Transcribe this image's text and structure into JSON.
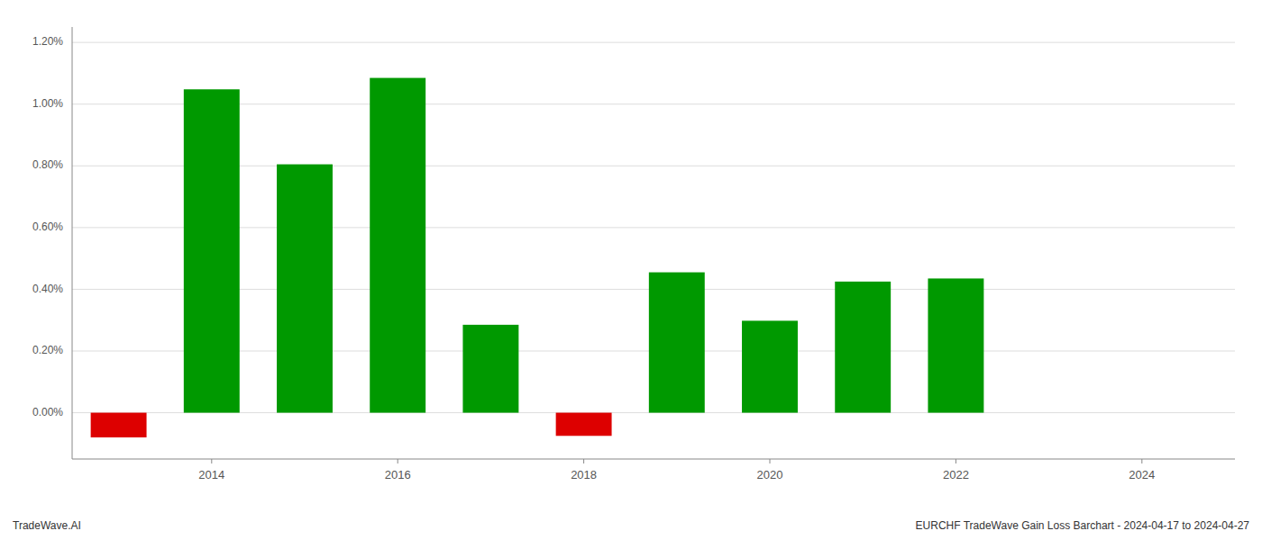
{
  "chart_data": {
    "type": "bar",
    "x": [
      2013,
      2014,
      2015,
      2016,
      2017,
      2018,
      2019,
      2020,
      2021,
      2022,
      2023
    ],
    "values": [
      -0.0008,
      0.01048,
      0.00805,
      0.01085,
      0.00285,
      -0.00075,
      0.00455,
      0.00298,
      0.00425,
      0.00435,
      0.0
    ],
    "colors": [
      "#dd0000",
      "#009900",
      "#009900",
      "#009900",
      "#009900",
      "#dd0000",
      "#009900",
      "#009900",
      "#009900",
      "#009900",
      "#009900"
    ],
    "xlim": [
      2012.5,
      2025.0
    ],
    "xticks": [
      2014,
      2016,
      2018,
      2020,
      2022,
      2024
    ],
    "ylim": [
      -0.0015,
      0.0125
    ],
    "yticks": [
      {
        "value": 0.0,
        "label": "0.00%"
      },
      {
        "value": 0.002,
        "label": "0.20%"
      },
      {
        "value": 0.004,
        "label": "0.40%"
      },
      {
        "value": 0.006,
        "label": "0.60%"
      },
      {
        "value": 0.008,
        "label": "0.80%"
      },
      {
        "value": 0.01,
        "label": "1.00%"
      },
      {
        "value": 0.012,
        "label": "1.20%"
      }
    ],
    "grid": true,
    "annotations": [
      "TradeWave.AI",
      "EURCHF TradeWave Gain Loss Barchart - 2024-04-17 to 2024-04-27"
    ]
  }
}
